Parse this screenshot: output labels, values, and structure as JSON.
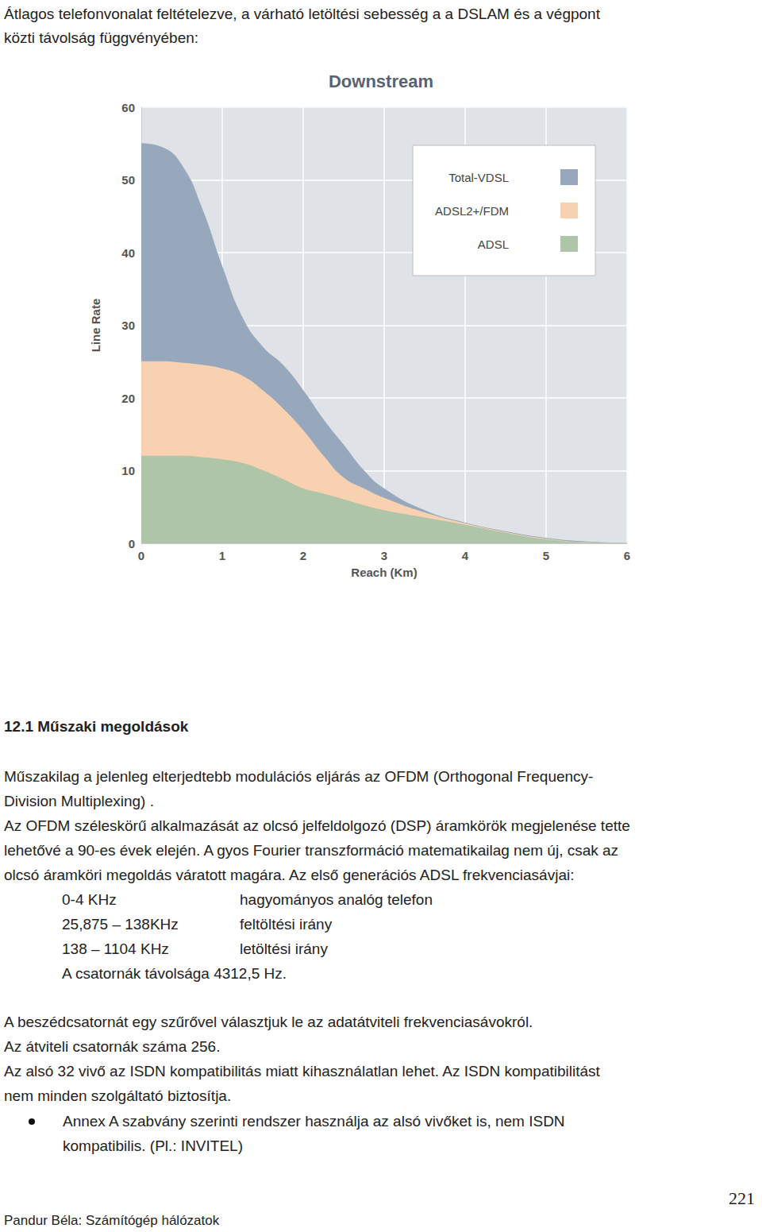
{
  "intro": [
    "Átlagos telefonvonalat feltételezve, a várható  letöltési sebesség a a DSLAM  és a végpont",
    "közti távolság függvényében:"
  ],
  "chart_data": {
    "type": "area",
    "title": "Downstream",
    "x_label": "Reach (Km)",
    "y_label": "Line Rate",
    "x": [
      0,
      0.25,
      0.5,
      0.75,
      1,
      1.25,
      1.5,
      1.75,
      2,
      2.25,
      2.5,
      2.75,
      3,
      3.5,
      4,
      4.5,
      5,
      5.5,
      6
    ],
    "series": [
      {
        "name": "Total-VDSL",
        "color": "#97a8bd",
        "values": [
          55,
          54.5,
          52,
          46,
          38,
          31,
          27,
          24.5,
          21,
          17,
          13.5,
          10,
          7.5,
          4.5,
          2.8,
          1.6,
          0.7,
          0.2,
          0
        ]
      },
      {
        "name": "ADSL2+/FDM",
        "color": "#f8d2b0",
        "values": [
          25,
          25,
          24.8,
          24.5,
          24,
          23,
          21,
          18.5,
          15.5,
          12,
          9,
          7.5,
          6.2,
          4.2,
          2.7,
          1.5,
          0.6,
          0.1,
          0
        ]
      },
      {
        "name": "ADSL",
        "color": "#aec5a8",
        "values": [
          12,
          12,
          12,
          11.8,
          11.5,
          11,
          10,
          8.8,
          7.5,
          6.8,
          6,
          5.2,
          4.5,
          3.5,
          2.5,
          1.4,
          0.5,
          0.1,
          0
        ]
      }
    ],
    "xlim": [
      0,
      6
    ],
    "xticks": [
      0,
      1,
      2,
      3,
      4,
      5,
      6
    ],
    "ylim": [
      0,
      60
    ],
    "yticks": [
      0,
      10,
      20,
      30,
      40,
      50,
      60
    ],
    "grid": true,
    "legend": "upper right"
  },
  "section_title": "12.1 Műszaki megoldások",
  "paragraphs": [
    [
      "Műszakilag a jelenleg elterjedtebb modulációs eljárás az OFDM (Orthogonal Frequency-",
      "Division Multiplexing) ."
    ],
    [
      "Az OFDM széleskörű alkalmazását az olcsó jelfeldolgozó (DSP) áramkörök megjelenése tette",
      "lehetővé a 90-es évek elején. A gyos Fourier transzformáció matematikailag nem új, csak az",
      "olcsó áramköri megoldás váratott magára. Az első generációs ADSL frekvenciasávjai:"
    ]
  ],
  "bands": [
    [
      "0-4 KHz",
      "hagyományos analóg telefon"
    ],
    [
      "25,875 – 138KHz",
      "feltöltési irány"
    ],
    [
      "138 – 1104 KHz",
      "letöltési irány"
    ]
  ],
  "channel_spacing": "A csatornák távolsága 4312,5 Hz.",
  "notes": [
    "A beszédcsatornát egy szűrővel választjuk le az adatátviteli frekvenciasávokról.",
    "Az  átviteli csatornák száma 256.",
    "Az alsó 32 vivő az ISDN kompatibilitás miatt kihasználatlan lehet. Az ISDN kompatibilitást",
    "nem minden szolgáltató biztosítja."
  ],
  "bullet": [
    "Annex A szabvány szerinti rendszer használja az alsó vivőket is, nem ISDN",
    "kompatibilis. (Pl.: INVITEL)"
  ],
  "footer": "Pandur Béla: Számítógép hálózatok",
  "page_number": "221"
}
